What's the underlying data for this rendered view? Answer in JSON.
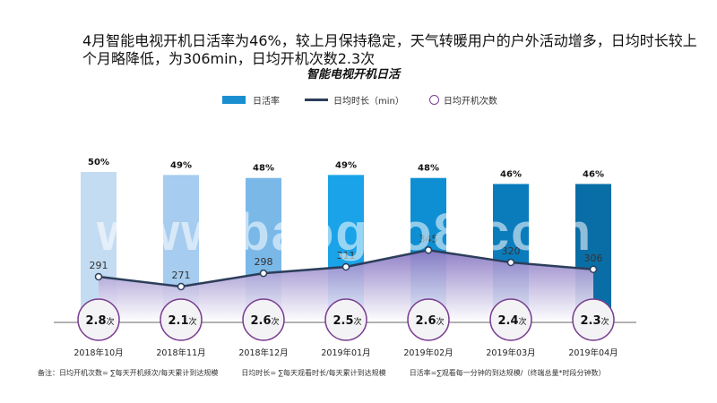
{
  "headline": "4月智能电视开机日活率为46%，较上月保持稳定，天气转暖用户的户外活动增多，日均时长较上个月略降低，为306min，日均开机次数2.3次",
  "subtitle": "智能电视开机日活",
  "legend": {
    "bar": "日活率",
    "line": "日均时长（min）",
    "circle": "日均开机次数"
  },
  "colors": {
    "bars": [
      "#c3dcf2",
      "#a6ccef",
      "#7ab8e8",
      "#1aa3e8",
      "#0e8fd3",
      "#0a7cbc",
      "#0a6ea6"
    ],
    "line": "#2c3e5a",
    "area_top": "#8a79c4",
    "circle_border": "#7b3f91"
  },
  "chart_data": {
    "type": "bar",
    "categories": [
      "2018年10月",
      "2018年11月",
      "2018年12月",
      "2019年01月",
      "2019年02月",
      "2019年03月",
      "2019年04月"
    ],
    "series": [
      {
        "name": "日活率",
        "type": "bar",
        "values": [
          50,
          49,
          48,
          49,
          48,
          46,
          46
        ],
        "labels": [
          "50%",
          "49%",
          "48%",
          "49%",
          "48%",
          "46%",
          "46%"
        ]
      },
      {
        "name": "日均时长（min）",
        "type": "area",
        "values": [
          291,
          271,
          298,
          311,
          345,
          320,
          306
        ],
        "labels": [
          "291",
          "271",
          "298",
          "311",
          "345",
          "320",
          "306"
        ]
      },
      {
        "name": "日均开机次数",
        "type": "circle",
        "values": [
          2.8,
          2.1,
          2.6,
          2.5,
          2.6,
          2.4,
          2.3
        ],
        "labels": [
          "2.8",
          "2.1",
          "2.6",
          "2.5",
          "2.6",
          "2.4",
          "2.3"
        ],
        "unit": "次"
      }
    ]
  },
  "footnote": {
    "a": "备注：日均开机次数= ∑每天开机频次/每天累计到达规模",
    "b": "日均时长= ∑每天观看时长/每天累计到达规模",
    "c": "日活率=∑观看每一分钟的到达规模/（终端总量*时段分钟数）"
  },
  "watermark": "www.baogao8.com"
}
